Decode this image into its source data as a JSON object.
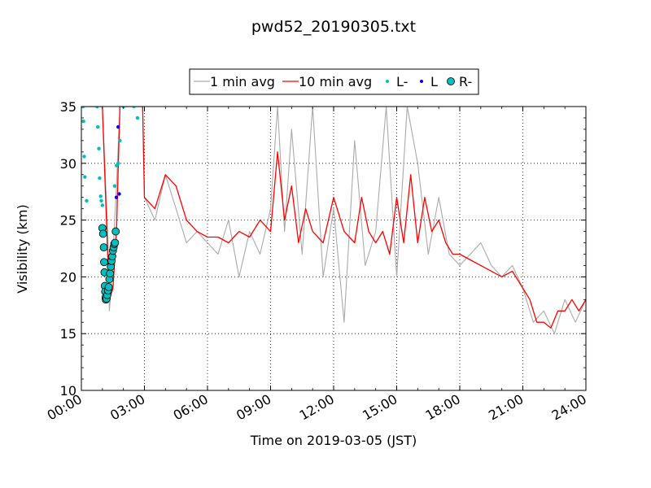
{
  "chart_data": {
    "type": "line",
    "title": "pwd52_20190305.txt",
    "xlabel": "Time on 2019-03-05 (JST)",
    "ylabel": "Visibility (km)",
    "xlim": [
      "00:00",
      "24:00"
    ],
    "ylim": [
      10,
      35
    ],
    "xticks": [
      "00:00",
      "03:00",
      "06:00",
      "09:00",
      "12:00",
      "15:00",
      "18:00",
      "21:00",
      "24:00"
    ],
    "yticks": [
      10,
      15,
      20,
      25,
      30,
      35
    ],
    "grid": true,
    "legend_position": "top-center, above plot",
    "colors": {
      "one_min_avg": "#aaaaaa",
      "ten_min_avg": "#ff0000",
      "L_minus": "#00bfbf",
      "L": "#0000ff",
      "R_minus": "#00bfbf"
    },
    "series": [
      {
        "name": "1 min avg",
        "style": "line",
        "x": [
          "00:00",
          "00:30",
          "01:00",
          "01:15",
          "01:20",
          "01:25",
          "01:30",
          "01:40",
          "01:50",
          "02:00",
          "02:30",
          "02:55",
          "03:00",
          "03:30",
          "04:00",
          "04:30",
          "05:00",
          "05:30",
          "06:00",
          "06:30",
          "07:00",
          "07:30",
          "08:00",
          "08:30",
          "09:00",
          "09:20",
          "09:40",
          "10:00",
          "10:30",
          "11:00",
          "11:30",
          "12:00",
          "12:30",
          "13:00",
          "13:30",
          "14:00",
          "14:30",
          "15:00",
          "15:30",
          "16:00",
          "16:30",
          "17:00",
          "17:30",
          "18:00",
          "18:30",
          "19:00",
          "19:30",
          "20:00",
          "20:30",
          "21:00",
          "21:30",
          "22:00",
          "22:30",
          "23:00",
          "23:30",
          "24:00"
        ],
        "y": [
          35,
          35,
          35,
          24,
          17,
          19,
          22,
          28,
          35,
          35,
          35,
          35,
          27,
          25,
          29,
          26,
          23,
          24,
          23,
          22,
          25,
          20,
          24,
          22,
          26,
          35,
          24,
          33,
          22,
          35,
          20,
          26,
          16,
          32,
          21,
          24,
          35,
          20,
          35,
          30,
          22,
          27,
          22,
          21,
          22,
          23,
          21,
          20,
          21,
          19,
          16,
          17,
          15,
          18,
          16,
          18
        ]
      },
      {
        "name": "10 min avg",
        "style": "line",
        "x": [
          "00:00",
          "00:30",
          "01:00",
          "01:15",
          "01:20",
          "01:30",
          "01:40",
          "01:50",
          "02:00",
          "02:30",
          "02:55",
          "03:00",
          "03:30",
          "04:00",
          "04:30",
          "05:00",
          "05:30",
          "06:00",
          "06:30",
          "07:00",
          "07:30",
          "08:00",
          "08:30",
          "09:00",
          "09:20",
          "09:40",
          "10:00",
          "10:20",
          "10:40",
          "11:00",
          "11:30",
          "12:00",
          "12:30",
          "13:00",
          "13:20",
          "13:40",
          "14:00",
          "14:20",
          "14:40",
          "15:00",
          "15:20",
          "15:40",
          "16:00",
          "16:20",
          "16:40",
          "17:00",
          "17:20",
          "17:40",
          "18:00",
          "18:30",
          "19:00",
          "19:30",
          "20:00",
          "20:30",
          "21:00",
          "21:20",
          "21:40",
          "22:00",
          "22:20",
          "22:40",
          "23:00",
          "23:20",
          "23:40",
          "24:00"
        ],
        "y": [
          35,
          35,
          35,
          22,
          18,
          19,
          24,
          35,
          35,
          35,
          35,
          27,
          26,
          29,
          28,
          25,
          24,
          23.5,
          23.5,
          23,
          24,
          23.5,
          25,
          24,
          31,
          25,
          28,
          23,
          26,
          24,
          23,
          27,
          24,
          23,
          27,
          24,
          23,
          24,
          22,
          27,
          23,
          29,
          23,
          27,
          24,
          25,
          23,
          22,
          22,
          21.5,
          21,
          20.5,
          20,
          20.5,
          19,
          18,
          16,
          16,
          15.5,
          17,
          17,
          18,
          17,
          18
        ]
      },
      {
        "name": "L-",
        "style": "markers-small",
        "x": [
          "00:05",
          "00:06",
          "00:08",
          "00:10",
          "00:15",
          "00:45",
          "00:47",
          "00:50",
          "00:52",
          "00:55",
          "00:57",
          "01:00",
          "01:35",
          "01:40",
          "01:45",
          "01:50",
          "02:00",
          "02:30",
          "02:40"
        ],
        "y": [
          35,
          33.7,
          30.6,
          28.8,
          26.7,
          35,
          33.2,
          31.3,
          28.7,
          27.1,
          26.7,
          26.3,
          28.0,
          29.8,
          30.0,
          32.0,
          35,
          35,
          34
        ]
      },
      {
        "name": "L",
        "style": "markers-small",
        "x": [
          "01:40",
          "01:45",
          "01:48"
        ],
        "y": [
          27.0,
          33.2,
          27.3
        ]
      },
      {
        "name": "R-",
        "style": "markers-large",
        "x": [
          "01:00",
          "01:02",
          "01:04",
          "01:05",
          "01:06",
          "01:07",
          "01:08",
          "01:09",
          "01:10",
          "01:12",
          "01:14",
          "01:16",
          "01:18",
          "01:20",
          "01:22",
          "01:24",
          "01:26",
          "01:28",
          "01:30",
          "01:32",
          "01:34",
          "01:36",
          "01:38"
        ],
        "y": [
          24.3,
          23.8,
          22.6,
          21.3,
          20.4,
          19.2,
          18.7,
          18.2,
          18.0,
          18.1,
          18.4,
          18.8,
          19.1,
          19.8,
          20.3,
          20.9,
          21.4,
          21.8,
          22.3,
          22.6,
          22.9,
          23.0,
          24.0
        ]
      }
    ]
  }
}
